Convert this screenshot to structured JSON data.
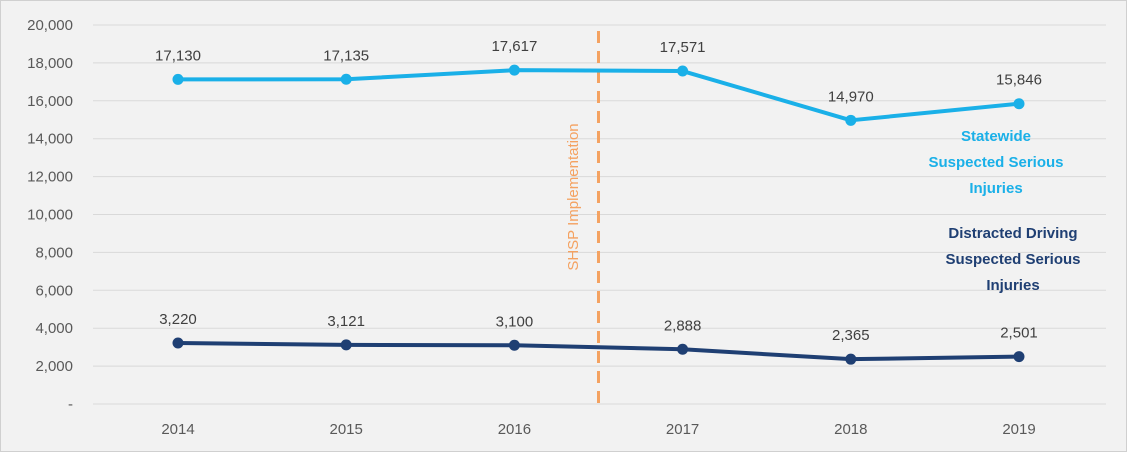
{
  "chart_data": {
    "type": "line",
    "categories": [
      "2014",
      "2015",
      "2016",
      "2017",
      "2018",
      "2019"
    ],
    "ylim": [
      0,
      20000
    ],
    "yticks": [
      0,
      2000,
      4000,
      6000,
      8000,
      10000,
      12000,
      14000,
      16000,
      18000,
      20000
    ],
    "ytick_labels": [
      "-",
      "2,000",
      "4,000",
      "6,000",
      "8,000",
      "10,000",
      "12,000",
      "14,000",
      "16,000",
      "18,000",
      "20,000"
    ],
    "grid": true,
    "series": [
      {
        "name": "Statewide Suspected Serious Injuries",
        "name_lines": [
          "Statewide",
          "Suspected Serious",
          "Injuries"
        ],
        "values": [
          17130,
          17135,
          17617,
          17571,
          14970,
          15846
        ],
        "value_labels": [
          "17,130",
          "17,135",
          "17,617",
          "17,571",
          "14,970",
          "15,846"
        ],
        "color": "#1ab0e8"
      },
      {
        "name": "Distracted Driving Suspected Serious Injuries",
        "name_lines": [
          "Distracted Driving",
          "Suspected Serious",
          "Injuries"
        ],
        "values": [
          3220,
          3121,
          3100,
          2888,
          2365,
          2501
        ],
        "value_labels": [
          "3,220",
          "3,121",
          "3,100",
          "2,888",
          "2,365",
          "2,501"
        ],
        "color": "#1f3f73"
      }
    ],
    "annotation": {
      "text": "SHSP Implementation",
      "color": "#f4a261"
    }
  }
}
